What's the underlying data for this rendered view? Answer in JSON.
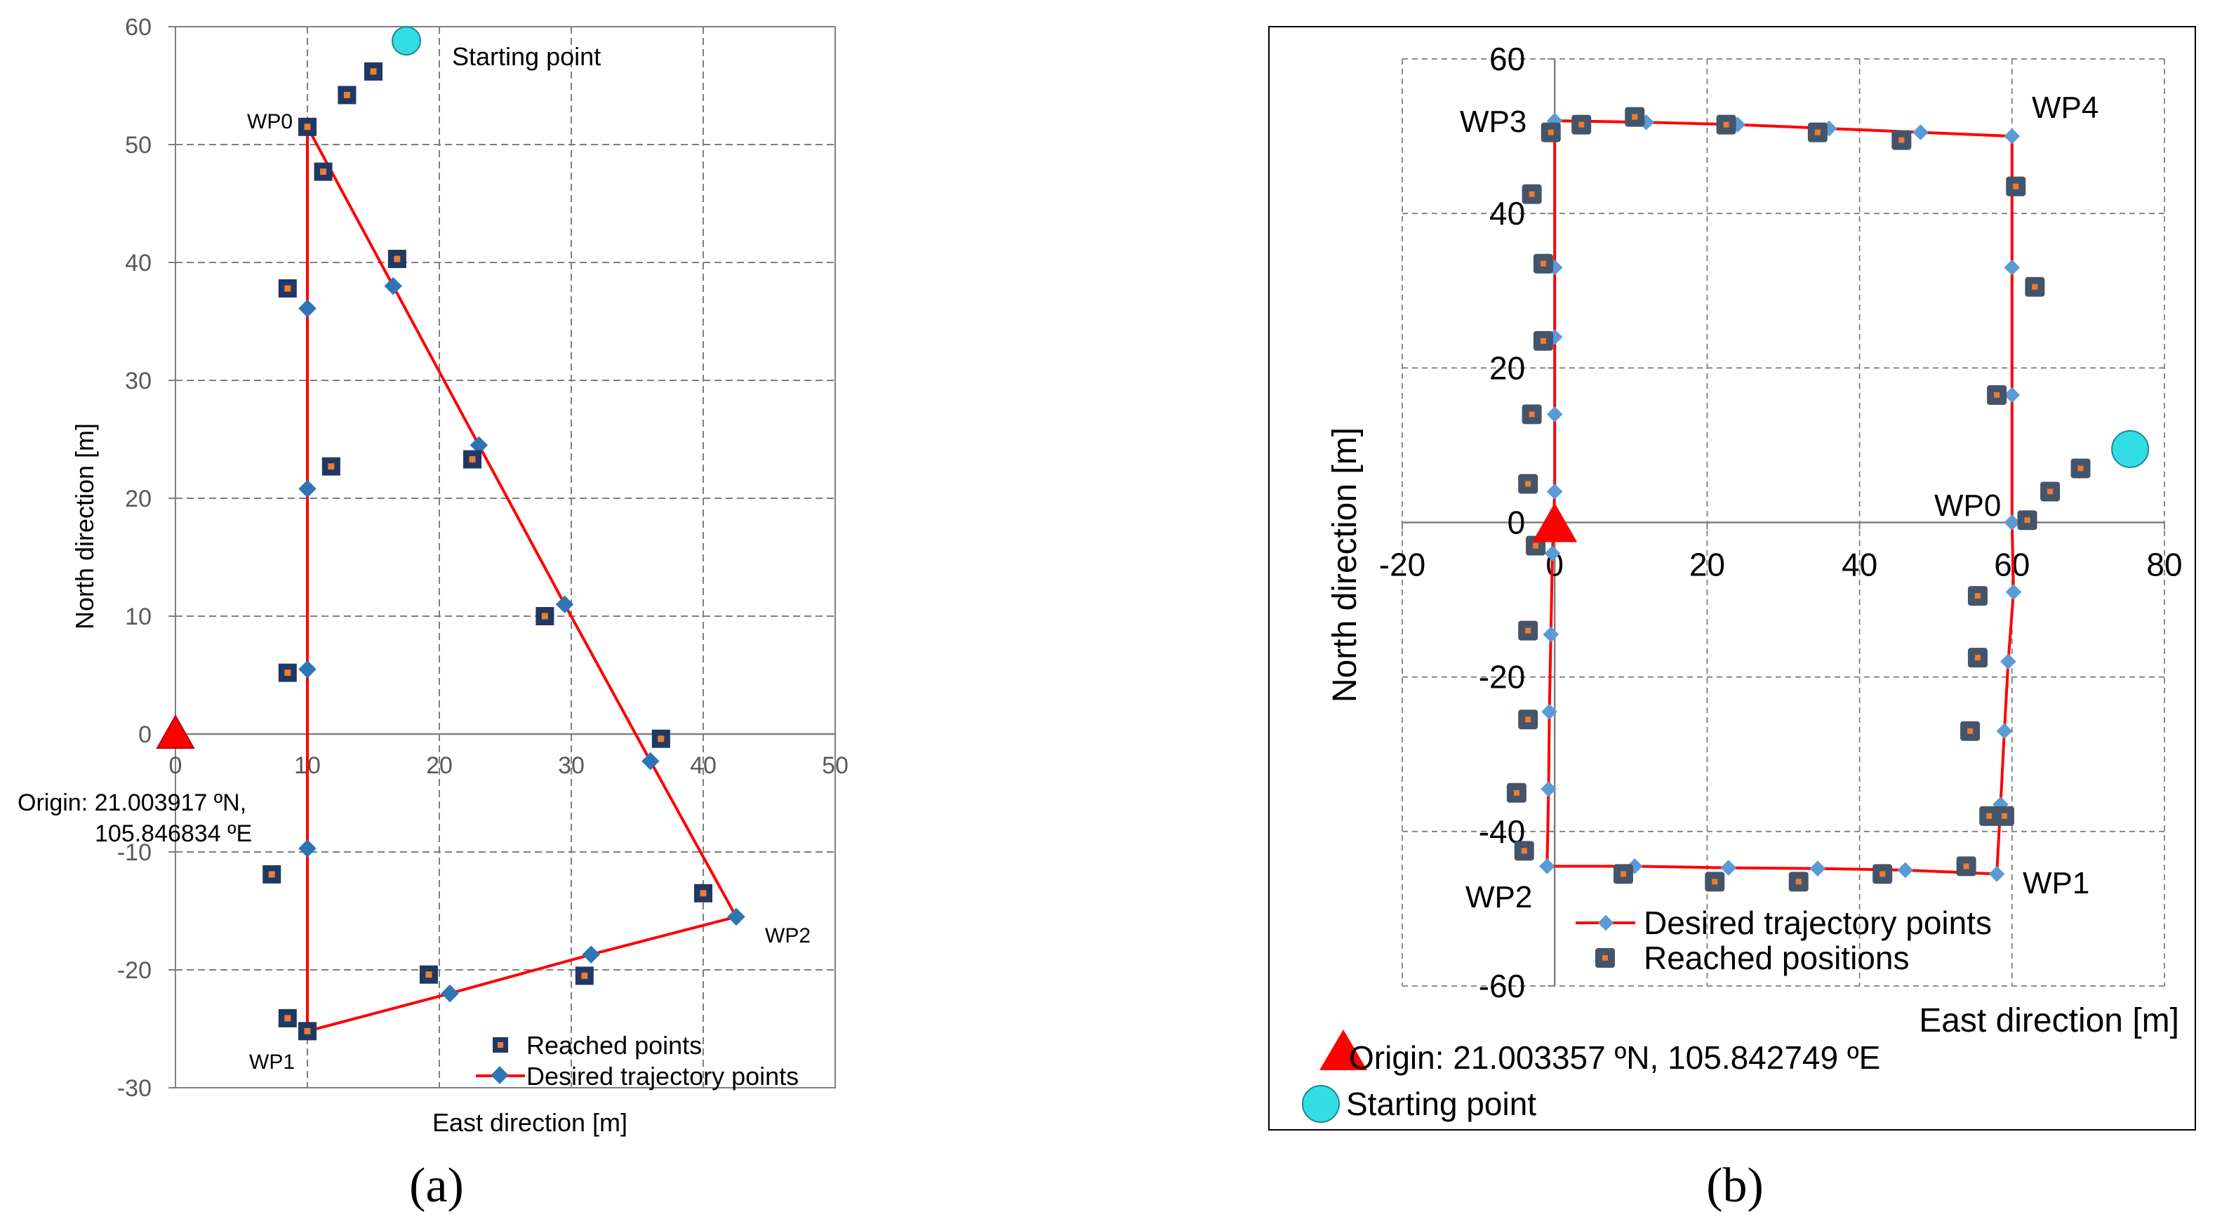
{
  "colors": {
    "trajectory": "#ff0000",
    "desired_marker": "#2e75b6",
    "desired_marker_b": "#5b9bd5",
    "reached_square": "#1f3864",
    "reached_square_b": "#44546a",
    "reached_center": "#ed7d31",
    "origin": "#ff0000",
    "start": "#33dde6",
    "grid": "#7f7f7f"
  },
  "chart_data": [
    {
      "id": "a",
      "type": "scatter",
      "caption": "(a)",
      "xlabel": "East direction [m]",
      "ylabel": "North direction [m]",
      "xlim": [
        0,
        50
      ],
      "ylim": [
        -30,
        60
      ],
      "xticks": [
        "0",
        "10",
        "20",
        "30",
        "40",
        "50"
      ],
      "yticks": [
        "-30",
        "-20",
        "-10",
        "0",
        "10",
        "20",
        "30",
        "40",
        "50",
        "60"
      ],
      "grid": true,
      "legend": {
        "position": "bottom-right",
        "reached_label": "Reached points",
        "desired_label": "Desired trajectory points"
      },
      "start_label": "Starting point",
      "origin_label": [
        "Origin: 21.003917 ºN,",
        "105.846834 ºE"
      ],
      "origin_point": {
        "x": 0,
        "y": 0
      },
      "start_point": {
        "x": 17.5,
        "y": 58.8
      },
      "waypoints": [
        {
          "label": "WP0",
          "x": 10,
          "y": 51.5
        },
        {
          "label": "WP1",
          "x": 10,
          "y": -25.2
        },
        {
          "label": "WP2",
          "x": 42.5,
          "y": -15.5
        }
      ],
      "series": [
        {
          "name": "Desired trajectory points",
          "x": [
            10,
            16.5,
            23,
            29.5,
            36,
            42.5,
            31.5,
            20.8,
            10,
            10,
            10,
            10,
            10,
            10
          ],
          "y": [
            51.5,
            38,
            24.5,
            11,
            -2.3,
            -15.5,
            -18.7,
            -22,
            -25.2,
            -9.7,
            5.5,
            20.8,
            36.1,
            51.5
          ]
        },
        {
          "name": "Reached points",
          "x": [
            15,
            13,
            10,
            11.2,
            16.8,
            8.5,
            22.5,
            11.8,
            28,
            8.5,
            36.8,
            7.3,
            40,
            31,
            19.2,
            8.5,
            10
          ],
          "y": [
            56.2,
            54.2,
            51.5,
            47.7,
            40.3,
            37.8,
            23.3,
            22.7,
            10,
            5.2,
            -0.4,
            -11.9,
            -13.5,
            -20.5,
            -20.4,
            -24.1,
            -25.2
          ]
        }
      ]
    },
    {
      "id": "b",
      "type": "scatter",
      "caption": "(b)",
      "xlabel": "East direction [m]",
      "ylabel": "North direction [m]",
      "xlim": [
        -20,
        80
      ],
      "ylim": [
        -60,
        60
      ],
      "xticks": [
        "-20",
        "0",
        "20",
        "40",
        "60",
        "80"
      ],
      "yticks": [
        "-60",
        "-40",
        "-20",
        "0",
        "20",
        "40",
        "60"
      ],
      "grid": true,
      "legend": {
        "position": "bottom-left",
        "desired_label": "Desired trajectory points",
        "reached_label": "Reached positions"
      },
      "origin_label": "Origin: 21.003357 ºN, 105.842749 ºE",
      "start_label": "Starting point",
      "origin_point": {
        "x": 0,
        "y": 0
      },
      "start_point": {
        "x": 75.5,
        "y": 9.5
      },
      "waypoints": [
        {
          "label": "WP0",
          "x": 60,
          "y": 0
        },
        {
          "label": "WP1",
          "x": 60,
          "y": -45.5
        },
        {
          "label": "WP2",
          "x": -1,
          "y": -44.5
        },
        {
          "label": "WP3",
          "x": 0,
          "y": 52
        },
        {
          "label": "WP4",
          "x": 60,
          "y": 50
        }
      ],
      "series": [
        {
          "name": "Desired trajectory points",
          "x": [
            60,
            60.2,
            59.5,
            59,
            58.5,
            58,
            46,
            34.5,
            22.8,
            10.5,
            -1,
            -0.8,
            -0.7,
            -0.5,
            -0.3,
            0,
            0,
            0,
            0,
            0,
            12,
            24,
            36,
            48,
            60,
            60,
            60,
            60
          ],
          "y": [
            0,
            -9,
            -18,
            -27,
            -36.5,
            -45.5,
            -45,
            -44.8,
            -44.7,
            -44.5,
            -44.5,
            -34.5,
            -24.5,
            -14.5,
            -4,
            4,
            14,
            24,
            33,
            52,
            51.8,
            51.5,
            51,
            50.5,
            50,
            33,
            16.5,
            0
          ]
        },
        {
          "name": "Reached positions",
          "x": [
            69,
            65,
            62,
            58,
            63,
            60.5,
            59,
            55.5,
            55.5,
            54.5,
            57,
            54,
            43,
            32,
            21,
            9,
            -4,
            -5,
            -3.5,
            -3.5,
            -2.5,
            -3.5,
            -3,
            -1.5,
            -1.5,
            -3,
            -0.5,
            3.5,
            10.5,
            22.5,
            34.5,
            45.5
          ],
          "y": [
            7,
            4,
            0.3,
            16.5,
            30.5,
            43.5,
            -38,
            -17.5,
            -9.5,
            -27,
            -38,
            -44.5,
            -45.5,
            -46.5,
            -46.5,
            -45.5,
            -42.5,
            -35,
            -25.5,
            -14,
            -3,
            5,
            14,
            23.5,
            33.5,
            42.5,
            50.5,
            51.5,
            52.5,
            51.5,
            50.5,
            49.5
          ]
        }
      ]
    }
  ]
}
